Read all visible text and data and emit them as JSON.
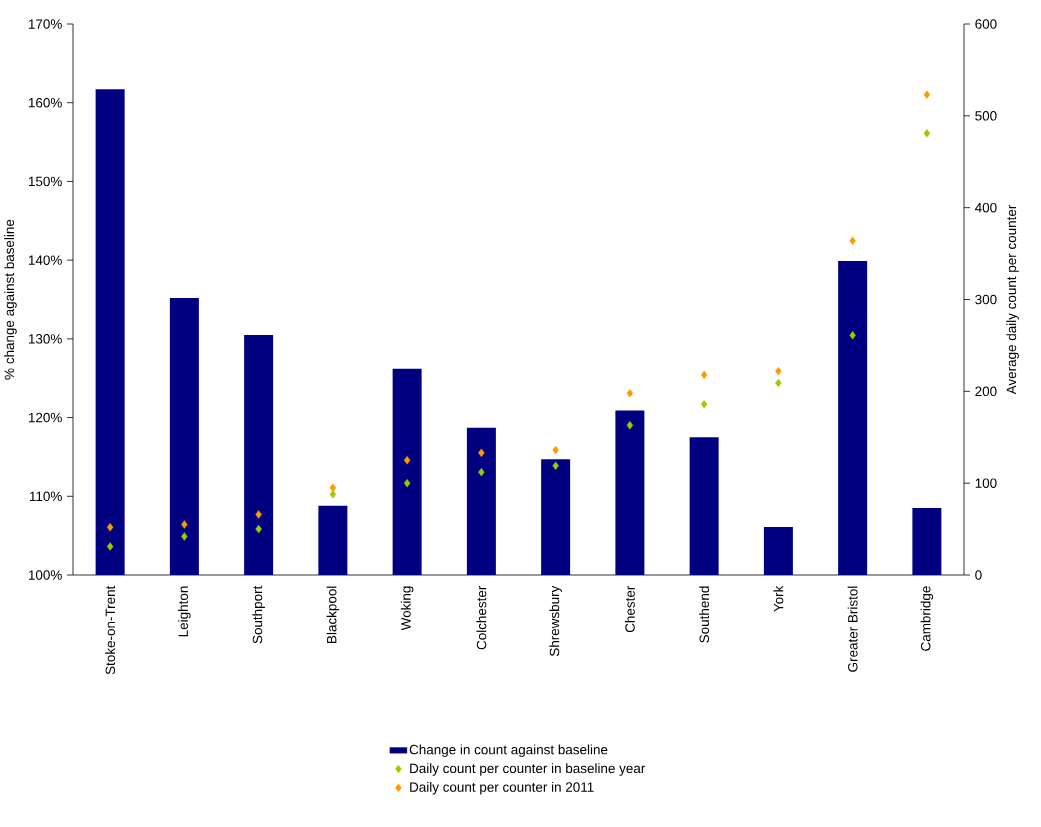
{
  "chart_data": {
    "type": "bar",
    "categories": [
      "Stoke-on-Trent",
      "Leighton",
      "Southport",
      "Blackpool",
      "Woking",
      "Colchester",
      "Shrewsbury",
      "Chester",
      "Southend",
      "York",
      "Greater Bristol",
      "Cambridge"
    ],
    "series": [
      {
        "name": "Change in count against baseline",
        "color": "#000080",
        "values": [
          161.7,
          135.2,
          130.5,
          108.8,
          126.2,
          118.7,
          114.7,
          120.9,
          117.5,
          106.1,
          139.9,
          108.5
        ]
      },
      {
        "name": "Daily count per counter in baseline year",
        "type": "scatter",
        "axis": "y2",
        "color": "#99cc00",
        "values": [
          31,
          42,
          50,
          88,
          100,
          112,
          119,
          163,
          186,
          209,
          261,
          481
        ]
      },
      {
        "name": "Daily count per counter in 2011",
        "type": "scatter",
        "axis": "y2",
        "color": "#ff9900",
        "values": [
          52,
          55,
          66,
          95,
          125,
          133,
          136,
          198,
          218,
          222,
          364,
          523
        ]
      }
    ],
    "ylabel": "% change against baseline",
    "y2label": "Average daily count per counter",
    "ylim": [
      100,
      170
    ],
    "yticks": [
      {
        "value": 100,
        "label": "100%"
      },
      {
        "value": 110,
        "label": "110%"
      },
      {
        "value": 120,
        "label": "120%"
      },
      {
        "value": 130,
        "label": "130%"
      },
      {
        "value": 140,
        "label": "140%"
      },
      {
        "value": 150,
        "label": "150%"
      },
      {
        "value": 160,
        "label": "160%"
      },
      {
        "value": 170,
        "label": "170%"
      }
    ],
    "y2lim": [
      0,
      600
    ],
    "y2ticks": [
      0,
      100,
      200,
      300,
      400,
      500,
      600
    ],
    "legend": "bottom",
    "marker": "diamond"
  }
}
